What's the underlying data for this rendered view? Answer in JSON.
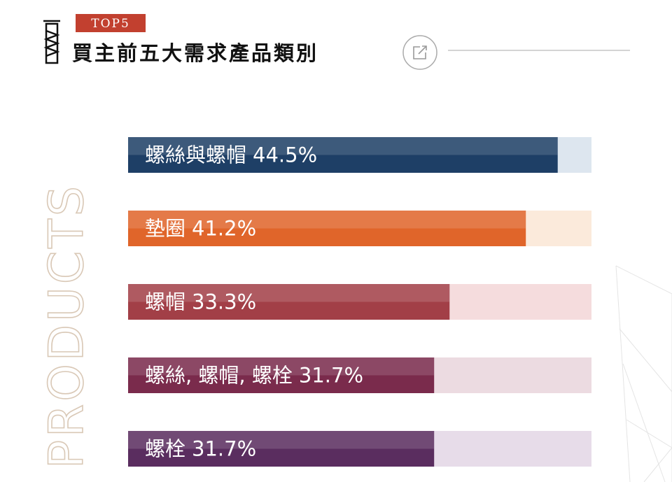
{
  "badge": "TOP5",
  "side_text": "PRODUCTS",
  "chart_data": {
    "type": "bar",
    "orientation": "horizontal",
    "title": "買主前五大需求產品類別",
    "categories": [
      "螺絲與螺帽",
      "墊圈",
      "螺帽",
      "螺絲, 螺帽, 螺栓",
      "螺栓"
    ],
    "values": [
      44.5,
      41.2,
      33.3,
      31.7,
      31.7
    ],
    "value_labels": [
      "44.5%",
      "41.2%",
      "33.3%",
      "31.7%",
      "31.7%"
    ],
    "colors": [
      "#1e3f66",
      "#e0652a",
      "#a23f47",
      "#7a2b4c",
      "#5a2d5f"
    ],
    "track_colors": [
      "#dde6ef",
      "#fbeadb",
      "#f5dcdd",
      "#ecdbe1",
      "#e7dce9"
    ],
    "xlim": [
      0,
      48
    ]
  }
}
